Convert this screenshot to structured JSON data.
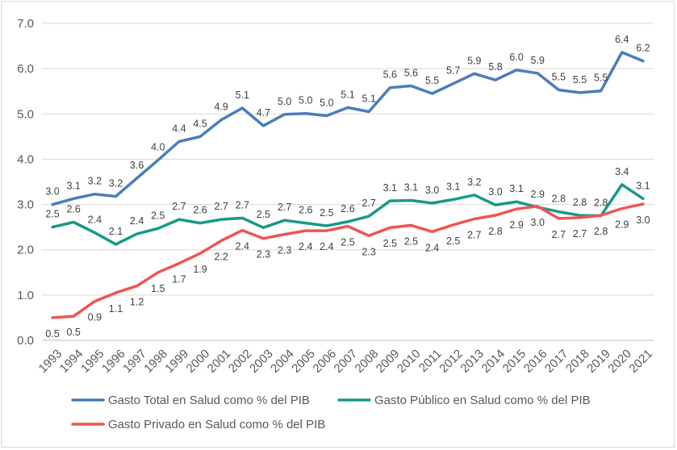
{
  "chart_data": {
    "type": "line",
    "title": "",
    "xlabel": "",
    "ylabel": "",
    "ylim": [
      0,
      7
    ],
    "yticks": [
      "0.0",
      "1.0",
      "2.0",
      "3.0",
      "4.0",
      "5.0",
      "6.0",
      "7.0"
    ],
    "grid": "horizontal",
    "legend_position": "bottom",
    "categories": [
      "1993",
      "1994",
      "1995",
      "1996",
      "1997",
      "1998",
      "1999",
      "2000",
      "2001",
      "2002",
      "2003",
      "2004",
      "2005",
      "2006",
      "2007",
      "2008",
      "2009",
      "2010",
      "2011",
      "2012",
      "2013",
      "2014",
      "2015",
      "2016",
      "2017",
      "2018",
      "2019",
      "2020",
      "2021"
    ],
    "series": [
      {
        "name": "Gasto Total en Salud como % del PIB",
        "color": "#4a7ebb",
        "values": [
          3.0,
          3.1,
          3.2,
          3.2,
          3.6,
          4.0,
          4.4,
          4.5,
          4.9,
          5.1,
          4.7,
          5.0,
          5.0,
          5.0,
          5.1,
          5.1,
          5.6,
          5.6,
          5.5,
          5.7,
          5.9,
          5.8,
          6.0,
          5.9,
          5.5,
          5.5,
          5.5,
          6.4,
          6.2
        ],
        "plot": [
          3.0,
          3.13,
          3.23,
          3.18,
          3.58,
          3.98,
          4.39,
          4.5,
          4.87,
          5.13,
          4.74,
          4.99,
          5.01,
          4.96,
          5.14,
          5.05,
          5.58,
          5.62,
          5.45,
          5.67,
          5.89,
          5.75,
          5.97,
          5.9,
          5.53,
          5.47,
          5.51,
          6.36,
          6.17
        ],
        "label_pos": "above"
      },
      {
        "name": "Gasto Público en Salud como % del PIB",
        "color": "#1a9988",
        "values": [
          2.5,
          2.6,
          2.4,
          2.1,
          2.4,
          2.5,
          2.7,
          2.6,
          2.7,
          2.7,
          2.5,
          2.7,
          2.6,
          2.5,
          2.6,
          2.7,
          3.1,
          3.1,
          3.0,
          3.1,
          3.2,
          3.0,
          3.1,
          2.9,
          2.8,
          2.8,
          2.8,
          3.4,
          3.1
        ],
        "plot": [
          2.5,
          2.61,
          2.38,
          2.12,
          2.35,
          2.47,
          2.67,
          2.59,
          2.67,
          2.7,
          2.49,
          2.65,
          2.59,
          2.53,
          2.62,
          2.74,
          3.08,
          3.09,
          3.03,
          3.11,
          3.21,
          2.99,
          3.06,
          2.94,
          2.84,
          2.76,
          2.75,
          3.44,
          3.13
        ],
        "label_pos": "above"
      },
      {
        "name": "Gasto Privado en Salud como % del PIB",
        "color": "#ee5555",
        "values": [
          0.5,
          0.5,
          0.9,
          1.1,
          1.2,
          1.5,
          1.7,
          1.9,
          2.2,
          2.4,
          2.3,
          2.3,
          2.4,
          2.4,
          2.5,
          2.3,
          2.5,
          2.5,
          2.4,
          2.5,
          2.7,
          2.8,
          2.9,
          3.0,
          2.7,
          2.7,
          2.8,
          2.9,
          3.0
        ],
        "plot": [
          0.5,
          0.53,
          0.86,
          1.05,
          1.2,
          1.5,
          1.7,
          1.92,
          2.2,
          2.43,
          2.25,
          2.34,
          2.42,
          2.42,
          2.52,
          2.31,
          2.49,
          2.54,
          2.4,
          2.55,
          2.68,
          2.76,
          2.9,
          2.96,
          2.69,
          2.71,
          2.76,
          2.91,
          3.01
        ],
        "label_pos": "below"
      }
    ]
  }
}
